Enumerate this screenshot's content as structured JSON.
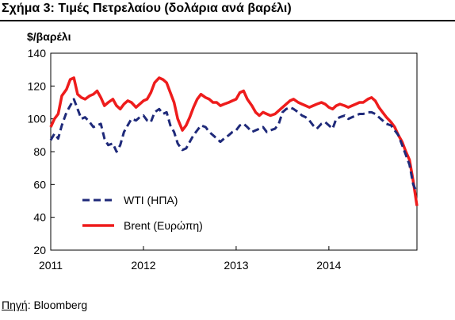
{
  "figure": {
    "title": "Σχήμα 3: Τιμές Πετρελαίου (δολάρια ανά βαρέλι)",
    "source_label": "Πηγή",
    "source_value": ": Bloomberg"
  },
  "chart_data": {
    "type": "line",
    "title": "Τιμές Πετρελαίου (δολάρια ανά βαρέλι)",
    "ylabel": "$/βαρέλι",
    "xlabel": "",
    "ylim": [
      20,
      140
    ],
    "yticks": [
      20,
      40,
      60,
      80,
      100,
      120,
      140
    ],
    "xlim": [
      2011.0,
      2014.95
    ],
    "xticks": [
      2011,
      2012,
      2013,
      2014
    ],
    "grid": false,
    "legend_position": "bottom-left",
    "series": [
      {
        "name": "WTI (ΗΠΑ)",
        "color": "#1f2a7a",
        "style": "dashed",
        "x": [
          2011.0,
          2011.04,
          2011.08,
          2011.12,
          2011.17,
          2011.21,
          2011.25,
          2011.29,
          2011.33,
          2011.37,
          2011.42,
          2011.46,
          2011.5,
          2011.54,
          2011.58,
          2011.62,
          2011.67,
          2011.71,
          2011.75,
          2011.79,
          2011.83,
          2011.87,
          2011.92,
          2011.96,
          2012.0,
          2012.04,
          2012.08,
          2012.12,
          2012.17,
          2012.21,
          2012.25,
          2012.29,
          2012.33,
          2012.37,
          2012.42,
          2012.46,
          2012.5,
          2012.54,
          2012.58,
          2012.62,
          2012.67,
          2012.71,
          2012.75,
          2012.79,
          2012.83,
          2012.87,
          2012.92,
          2012.96,
          2013.0,
          2013.04,
          2013.08,
          2013.12,
          2013.17,
          2013.21,
          2013.25,
          2013.29,
          2013.33,
          2013.37,
          2013.42,
          2013.46,
          2013.5,
          2013.54,
          2013.58,
          2013.62,
          2013.67,
          2013.71,
          2013.75,
          2013.79,
          2013.83,
          2013.87,
          2013.92,
          2013.96,
          2014.0,
          2014.04,
          2014.08,
          2014.12,
          2014.17,
          2014.21,
          2014.25,
          2014.29,
          2014.33,
          2014.37,
          2014.42,
          2014.46,
          2014.5,
          2014.54,
          2014.58,
          2014.62,
          2014.67,
          2014.71,
          2014.75,
          2014.79,
          2014.83,
          2014.87,
          2014.91,
          2014.95
        ],
        "y": [
          87,
          91,
          88,
          96,
          104,
          108,
          112,
          106,
          100,
          101,
          98,
          95,
          96,
          97,
          88,
          84,
          85,
          80,
          84,
          92,
          96,
          100,
          99,
          101,
          102,
          99,
          98,
          104,
          106,
          103,
          104,
          96,
          92,
          85,
          81,
          82,
          86,
          90,
          93,
          96,
          95,
          92,
          90,
          88,
          86,
          88,
          90,
          92,
          93,
          96,
          97,
          95,
          92,
          93,
          94,
          95,
          92,
          93,
          94,
          97,
          104,
          106,
          107,
          106,
          104,
          102,
          101,
          99,
          96,
          94,
          97,
          98,
          96,
          94,
          100,
          101,
          102,
          100,
          101,
          102,
          103,
          103,
          104,
          104,
          103,
          101,
          99,
          97,
          96,
          93,
          90,
          84,
          78,
          72,
          60,
          55
        ]
      },
      {
        "name": "Brent (Ευρώπη)",
        "color": "#ee1c1c",
        "style": "solid",
        "x": [
          2011.0,
          2011.04,
          2011.08,
          2011.12,
          2011.17,
          2011.21,
          2011.25,
          2011.29,
          2011.33,
          2011.37,
          2011.42,
          2011.46,
          2011.5,
          2011.54,
          2011.58,
          2011.62,
          2011.67,
          2011.71,
          2011.75,
          2011.79,
          2011.83,
          2011.87,
          2011.92,
          2011.96,
          2012.0,
          2012.04,
          2012.08,
          2012.12,
          2012.17,
          2012.21,
          2012.25,
          2012.29,
          2012.33,
          2012.37,
          2012.42,
          2012.46,
          2012.5,
          2012.54,
          2012.58,
          2012.62,
          2012.67,
          2012.71,
          2012.75,
          2012.79,
          2012.83,
          2012.87,
          2012.92,
          2012.96,
          2013.0,
          2013.04,
          2013.08,
          2013.12,
          2013.17,
          2013.21,
          2013.25,
          2013.29,
          2013.33,
          2013.37,
          2013.42,
          2013.46,
          2013.5,
          2013.54,
          2013.58,
          2013.62,
          2013.67,
          2013.71,
          2013.75,
          2013.79,
          2013.83,
          2013.87,
          2013.92,
          2013.96,
          2014.0,
          2014.04,
          2014.08,
          2014.12,
          2014.17,
          2014.21,
          2014.25,
          2014.29,
          2014.33,
          2014.37,
          2014.42,
          2014.46,
          2014.5,
          2014.54,
          2014.58,
          2014.62,
          2014.67,
          2014.71,
          2014.75,
          2014.79,
          2014.83,
          2014.87,
          2014.91,
          2014.95
        ],
        "y": [
          95,
          100,
          103,
          114,
          118,
          124,
          125,
          115,
          113,
          112,
          114,
          115,
          117,
          113,
          108,
          110,
          112,
          108,
          106,
          109,
          111,
          110,
          107,
          109,
          111,
          112,
          116,
          122,
          125,
          124,
          122,
          116,
          110,
          100,
          93,
          96,
          101,
          107,
          112,
          115,
          113,
          112,
          110,
          110,
          108,
          109,
          110,
          111,
          112,
          116,
          117,
          112,
          108,
          104,
          102,
          104,
          103,
          102,
          103,
          105,
          107,
          109,
          111,
          112,
          110,
          109,
          108,
          107,
          108,
          109,
          110,
          109,
          107,
          106,
          108,
          109,
          108,
          107,
          108,
          109,
          110,
          110,
          112,
          113,
          111,
          107,
          104,
          101,
          98,
          95,
          90,
          86,
          80,
          75,
          62,
          47
        ]
      }
    ]
  }
}
